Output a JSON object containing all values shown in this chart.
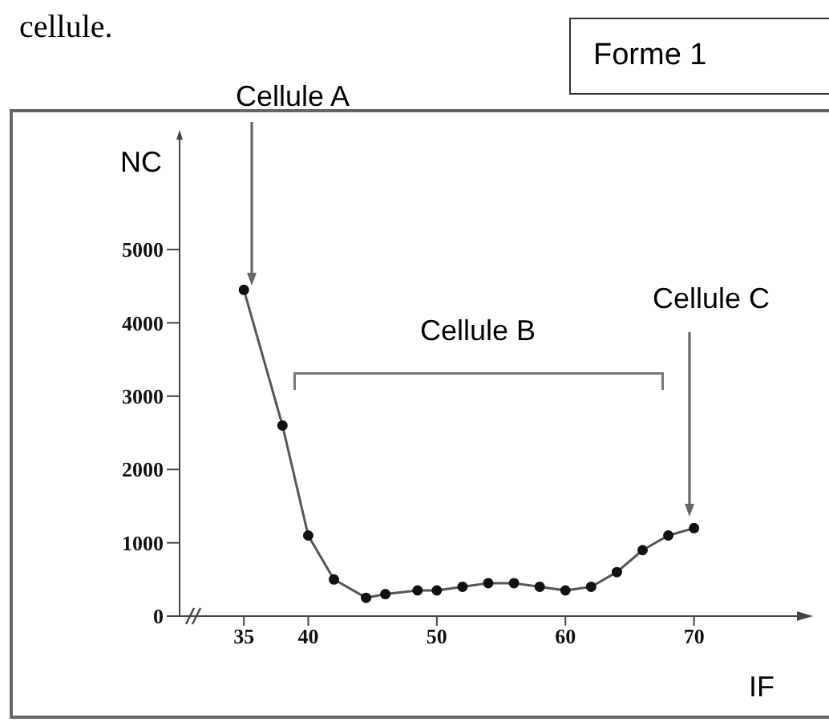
{
  "chart_data": {
    "type": "line",
    "xlabel": "IF",
    "ylabel": "NC",
    "x": [
      35,
      38,
      40,
      42,
      44.5,
      46,
      48.5,
      50,
      52,
      54,
      56,
      58,
      60,
      62,
      64,
      66,
      68,
      70
    ],
    "series": [
      {
        "color": "#555555",
        "values": [
          4450,
          2600,
          1100,
          500,
          250,
          300,
          350,
          350,
          400,
          450,
          450,
          400,
          350,
          400,
          600,
          900,
          1100,
          1200
        ]
      }
    ],
    "xlim": [
      30,
      78
    ],
    "xticks": [
      35,
      40,
      50,
      60,
      70
    ],
    "ylim": [
      0,
      6500
    ],
    "yticks": [
      0,
      1000,
      2000,
      3000,
      4000,
      5000
    ],
    "marker": "circle",
    "line_style": "solid",
    "annotations": [
      "cellule.",
      "Forme 1",
      "Cellule A",
      "Cellule B",
      "Cellule C"
    ]
  }
}
